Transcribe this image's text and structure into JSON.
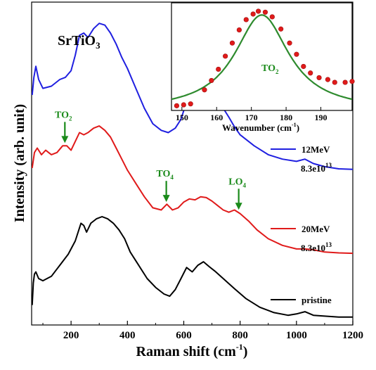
{
  "chart_data": [
    {
      "type": "line",
      "xlabel": "Raman shift (cm",
      "xlabel_sup": "-1",
      "xlabel_tail": ")",
      "ylabel": "Intensity (arb. unit)",
      "xlim": [
        60,
        1200
      ],
      "x_ticks": [
        "200",
        "400",
        "600",
        "800",
        "1000",
        "1200"
      ],
      "y_ticks": [],
      "material_label": {
        "base": "SrTiO",
        "sub": "3"
      },
      "series": [
        {
          "name": "12MeV",
          "dose_base": "8.3e10",
          "dose_sup": "13",
          "color": "#1f1fe0",
          "x": [
            62,
            68,
            75,
            85,
            100,
            130,
            160,
            180,
            200,
            215,
            230,
            245,
            260,
            280,
            300,
            320,
            340,
            360,
            380,
            400,
            430,
            460,
            490,
            520,
            545,
            570,
            590,
            605,
            620,
            640,
            660,
            680,
            700,
            720,
            740,
            760,
            780,
            800,
            850,
            900,
            950,
            1000,
            1030,
            1060,
            1100,
            1150,
            1200
          ],
          "y": [
            5.1,
            5.5,
            5.75,
            5.45,
            5.25,
            5.3,
            5.45,
            5.5,
            5.65,
            6.0,
            6.45,
            6.5,
            6.4,
            6.6,
            6.72,
            6.68,
            6.5,
            6.25,
            5.95,
            5.7,
            5.25,
            4.8,
            4.45,
            4.3,
            4.25,
            4.35,
            4.55,
            4.85,
            4.95,
            4.9,
            5.05,
            5.12,
            5.0,
            4.95,
            4.8,
            4.6,
            4.38,
            4.2,
            3.95,
            3.75,
            3.65,
            3.6,
            3.65,
            3.55,
            3.48,
            3.43,
            3.42
          ]
        },
        {
          "name": "20MeV",
          "dose_base": "8.3e10",
          "dose_sup": "13",
          "color": "#e01a1a",
          "x": [
            62,
            70,
            80,
            95,
            110,
            130,
            150,
            170,
            185,
            200,
            215,
            230,
            245,
            260,
            280,
            300,
            320,
            340,
            360,
            380,
            400,
            430,
            460,
            490,
            520,
            540,
            560,
            580,
            600,
            620,
            640,
            660,
            680,
            700,
            720,
            740,
            760,
            780,
            800,
            830,
            860,
            900,
            950,
            1000,
            1030,
            1060,
            1100,
            1150,
            1200
          ],
          "y": [
            3.45,
            3.8,
            3.9,
            3.75,
            3.85,
            3.75,
            3.8,
            3.95,
            3.95,
            3.85,
            4.05,
            4.25,
            4.2,
            4.25,
            4.35,
            4.4,
            4.3,
            4.15,
            3.9,
            3.65,
            3.4,
            3.1,
            2.8,
            2.55,
            2.5,
            2.63,
            2.5,
            2.55,
            2.68,
            2.75,
            2.73,
            2.8,
            2.78,
            2.7,
            2.6,
            2.5,
            2.45,
            2.5,
            2.42,
            2.25,
            2.05,
            1.85,
            1.7,
            1.62,
            1.62,
            1.6,
            1.55,
            1.53,
            1.52
          ]
        },
        {
          "name": "pristine",
          "color": "#000000",
          "x": [
            62,
            66,
            70,
            75,
            85,
            100,
            130,
            160,
            190,
            215,
            235,
            245,
            255,
            270,
            290,
            310,
            330,
            350,
            370,
            390,
            410,
            440,
            470,
            500,
            530,
            550,
            570,
            590,
            610,
            630,
            650,
            670,
            690,
            710,
            740,
            780,
            820,
            870,
            920,
            970,
            1000,
            1030,
            1060,
            1100,
            1150,
            1200
          ],
          "y": [
            0.35,
            0.85,
            1.05,
            1.1,
            0.95,
            0.9,
            1.0,
            1.25,
            1.5,
            1.8,
            2.2,
            2.15,
            2.0,
            2.2,
            2.3,
            2.35,
            2.3,
            2.2,
            2.05,
            1.85,
            1.55,
            1.25,
            0.95,
            0.75,
            0.6,
            0.55,
            0.7,
            0.95,
            1.2,
            1.1,
            1.25,
            1.33,
            1.22,
            1.12,
            0.95,
            0.72,
            0.5,
            0.3,
            0.18,
            0.12,
            0.15,
            0.2,
            0.12,
            0.1,
            0.08,
            0.08
          ]
        }
      ],
      "annotations": [
        {
          "base": "TO",
          "sub": "2",
          "x": 178
        },
        {
          "base": "TO",
          "sub": "4",
          "x": 538
        },
        {
          "base": "LO",
          "sub": "4",
          "x": 795
        }
      ]
    },
    {
      "type": "scatter",
      "panel": "inset",
      "xlabel": "Wavenumber (cm",
      "xlabel_sup": "-1",
      "xlabel_tail": ")",
      "xlim": [
        147,
        199
      ],
      "ylim": [
        0,
        1.15
      ],
      "x_ticks": [
        "150",
        "160",
        "170",
        "180",
        "190"
      ],
      "annotation": {
        "base": "TO",
        "sub": "2"
      },
      "points": {
        "color": "#e01a1a",
        "x": [
          148.5,
          150.5,
          152.5,
          156.5,
          158.5,
          160.5,
          162.5,
          164.5,
          166.5,
          168.5,
          170.5,
          172,
          174,
          176,
          178.5,
          181,
          183,
          185,
          187,
          189.5,
          192,
          194,
          197,
          199
        ],
        "y": [
          0.05,
          0.06,
          0.07,
          0.22,
          0.32,
          0.44,
          0.58,
          0.72,
          0.86,
          0.97,
          1.03,
          1.06,
          1.05,
          1.0,
          0.87,
          0.72,
          0.6,
          0.47,
          0.4,
          0.35,
          0.33,
          0.3,
          0.3,
          0.31
        ]
      },
      "fit": {
        "color": "#2e8b2e",
        "center": 173,
        "gamma": 9.5,
        "amplitude": 1.02,
        "baseline": 0.0
      }
    }
  ]
}
